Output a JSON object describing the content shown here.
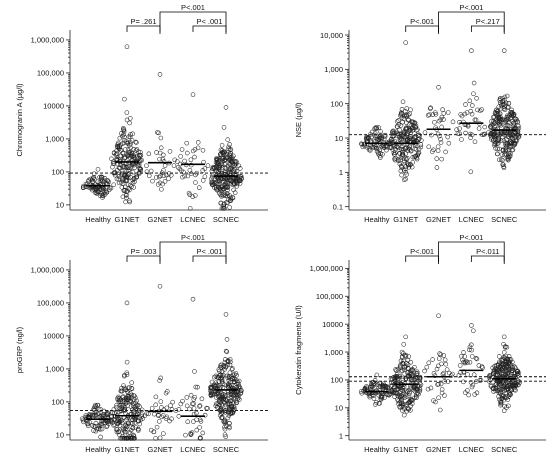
{
  "chart_data": [
    {
      "type": "scatter",
      "ylabel": "Chromogranin A (µg/l)",
      "yscale": "log",
      "ylim": [
        7,
        2000000
      ],
      "yticks": [
        "10",
        "100",
        "1,000",
        "10000",
        "100,000",
        "1,000,000"
      ],
      "categories": [
        "Healthy",
        "G1NET",
        "G2NET",
        "LCNEC",
        "SCNEC"
      ],
      "medians": [
        38,
        200,
        190,
        170,
        75
      ],
      "reference_lines": [
        92
      ],
      "maxima": [
        120,
        620000,
        90000,
        22000,
        9000
      ],
      "comparisons": [
        {
          "from": "G1NET",
          "to": "G2NET",
          "label": "P= .261"
        },
        {
          "from": "LCNEC",
          "to": "SCNEC",
          "label": "P< .001"
        },
        {
          "from": "G2NET",
          "to": "SCNEC",
          "label": "P<.001"
        }
      ]
    },
    {
      "type": "scatter",
      "ylabel": "NSE (µg/l)",
      "yscale": "log",
      "ylim": [
        0.08,
        14000
      ],
      "yticks": [
        "0.1",
        "1",
        "10",
        "100",
        "1,000",
        "10,000"
      ],
      "categories": [
        "Healthy",
        "G1NET",
        "G2NET",
        "LCNEC",
        "SCNEC"
      ],
      "medians": [
        7,
        7,
        18,
        27,
        17
      ],
      "reference_lines": [
        12.5
      ],
      "maxima": [
        20,
        6000,
        300,
        3500,
        3500
      ],
      "comparisons": [
        {
          "from": "G1NET",
          "to": "G2NET",
          "label": "P<.001"
        },
        {
          "from": "LCNEC",
          "to": "SCNEC",
          "label": "P<.217"
        },
        {
          "from": "G2NET",
          "to": "SCNEC",
          "label": "P<.001"
        }
      ]
    },
    {
      "type": "scatter",
      "ylabel": "proGRP (ng/l)",
      "yscale": "log",
      "ylim": [
        7,
        2000000
      ],
      "yticks": [
        "10",
        "100",
        "1,000",
        "10000",
        "100,000",
        "1,000,000"
      ],
      "categories": [
        "Healthy",
        "G1NET",
        "G2NET",
        "LCNEC",
        "SCNEC"
      ],
      "medians": [
        30,
        38,
        52,
        37,
        230
      ],
      "reference_lines": [
        55
      ],
      "maxima": [
        80,
        100000,
        320000,
        130000,
        45000
      ],
      "comparisons": [
        {
          "from": "G1NET",
          "to": "G2NET",
          "label": "P= .003"
        },
        {
          "from": "LCNEC",
          "to": "SCNEC",
          "label": "P< .001"
        },
        {
          "from": "G2NET",
          "to": "SCNEC",
          "label": "P<.001"
        }
      ]
    },
    {
      "type": "scatter",
      "ylabel": "Cytokeratin fragments (U/l)",
      "yscale": "log",
      "ylim": [
        0.7,
        2000000
      ],
      "yticks": [
        "1",
        "10",
        "100",
        "1,000",
        "10000",
        "100,000",
        "1,000,000"
      ],
      "categories": [
        "Healthy",
        "G1NET",
        "G2NET",
        "LCNEC",
        "SCNEC"
      ],
      "medians": [
        38,
        70,
        130,
        220,
        110
      ],
      "reference_lines": [
        90,
        130
      ],
      "maxima": [
        150,
        3500,
        20000,
        9000,
        3500
      ],
      "comparisons": [
        {
          "from": "G1NET",
          "to": "G2NET",
          "label": "P<.001"
        },
        {
          "from": "LCNEC",
          "to": "SCNEC",
          "label": "P<.011"
        },
        {
          "from": "G2NET",
          "to": "SCNEC",
          "label": "P<.001"
        }
      ]
    }
  ]
}
